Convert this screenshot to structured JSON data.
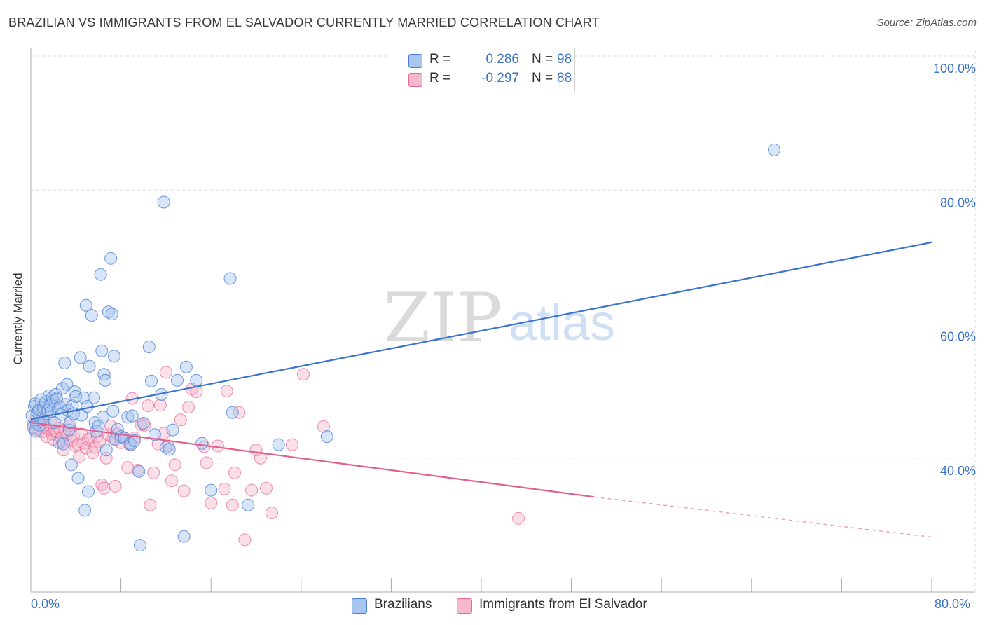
{
  "header": {
    "title": "BRAZILIAN VS IMMIGRANTS FROM EL SALVADOR CURRENTLY MARRIED CORRELATION CHART",
    "source": "Source: ZipAtlas.com"
  },
  "watermark": {
    "zip": "ZIP",
    "atlas": "atlas"
  },
  "legend": {
    "r_label": "R =",
    "n_label": "N =",
    "series": [
      {
        "name": "Brazilians",
        "r": "0.286",
        "n": "98"
      },
      {
        "name": "Immigrants from El Salvador",
        "r": "-0.297",
        "n": "88"
      }
    ]
  },
  "chart_data": {
    "type": "scatter",
    "title": "BRAZILIAN VS IMMIGRANTS FROM EL SALVADOR CURRENTLY MARRIED CORRELATION CHART",
    "xlabel": "",
    "ylabel": "Currently Married",
    "xlim": [
      0,
      80
    ],
    "ylim": [
      20,
      100
    ],
    "x_tick_labels": [
      "0.0%",
      "80.0%"
    ],
    "y_tick_labels": [
      "40.0%",
      "60.0%",
      "80.0%",
      "100.0%"
    ],
    "y_ticks": [
      40,
      60,
      80,
      100
    ],
    "grid": true,
    "colors": {
      "blue": "#4a7fd4",
      "blue_fill": "#a9c6ef",
      "pink": "#e8699a",
      "pink_fill": "#f5b8cd",
      "axis_label": "#3b73c6"
    },
    "series": [
      {
        "name": "Brazilians",
        "r": 0.286,
        "n": 98,
        "trend": {
          "x1": 0,
          "y1": 45.8,
          "x2": 80,
          "y2": 72.2
        },
        "points": [
          [
            0.1,
            46.3
          ],
          [
            0.2,
            44.6
          ],
          [
            0.3,
            47.7
          ],
          [
            0.4,
            48.1
          ],
          [
            0.5,
            45.2
          ],
          [
            0.6,
            46.8
          ],
          [
            0.7,
            47.2
          ],
          [
            0.8,
            44.9
          ],
          [
            0.9,
            48.7
          ],
          [
            1.0,
            46.0
          ],
          [
            1.1,
            47.5
          ],
          [
            1.2,
            45.7
          ],
          [
            1.3,
            48.3
          ],
          [
            1.4,
            46.6
          ],
          [
            1.5,
            47.1
          ],
          [
            1.6,
            49.3
          ],
          [
            1.7,
            47.8
          ],
          [
            1.8,
            46.9
          ],
          [
            1.9,
            49.0
          ],
          [
            2.0,
            48.6
          ],
          [
            2.1,
            45.3
          ],
          [
            2.2,
            49.5
          ],
          [
            2.3,
            48.8
          ],
          [
            2.4,
            47.4
          ],
          [
            2.5,
            42.3
          ],
          [
            2.6,
            47.6
          ],
          [
            2.7,
            46.5
          ],
          [
            2.8,
            50.4
          ],
          [
            2.9,
            42.1
          ],
          [
            3.0,
            54.2
          ],
          [
            3.1,
            48.0
          ],
          [
            3.2,
            51.0
          ],
          [
            3.3,
            47.1
          ],
          [
            3.4,
            44.2
          ],
          [
            3.5,
            45.3
          ],
          [
            3.6,
            39.0
          ],
          [
            3.7,
            47.8
          ],
          [
            3.8,
            46.6
          ],
          [
            3.9,
            49.9
          ],
          [
            4.0,
            49.2
          ],
          [
            4.2,
            37.0
          ],
          [
            4.4,
            55.0
          ],
          [
            4.5,
            46.4
          ],
          [
            4.7,
            49.0
          ],
          [
            4.8,
            32.2
          ],
          [
            4.9,
            62.8
          ],
          [
            5.0,
            47.7
          ],
          [
            5.1,
            35.0
          ],
          [
            5.2,
            53.7
          ],
          [
            5.4,
            61.3
          ],
          [
            5.6,
            49.0
          ],
          [
            5.7,
            45.3
          ],
          [
            5.8,
            44.0
          ],
          [
            6.0,
            44.8
          ],
          [
            6.2,
            67.4
          ],
          [
            6.3,
            56.0
          ],
          [
            6.4,
            46.1
          ],
          [
            6.5,
            52.5
          ],
          [
            6.6,
            51.6
          ],
          [
            6.7,
            41.2
          ],
          [
            6.9,
            61.8
          ],
          [
            7.1,
            69.8
          ],
          [
            7.2,
            61.5
          ],
          [
            7.3,
            47.0
          ],
          [
            7.4,
            55.2
          ],
          [
            7.5,
            42.8
          ],
          [
            7.7,
            44.3
          ],
          [
            8.0,
            43.2
          ],
          [
            8.3,
            43.0
          ],
          [
            8.6,
            46.1
          ],
          [
            8.8,
            42.2
          ],
          [
            8.9,
            42.0
          ],
          [
            9.0,
            46.3
          ],
          [
            9.2,
            42.6
          ],
          [
            9.6,
            38.0
          ],
          [
            9.7,
            27.0
          ],
          [
            10.0,
            45.2
          ],
          [
            10.5,
            56.6
          ],
          [
            10.7,
            51.5
          ],
          [
            11.0,
            43.5
          ],
          [
            11.6,
            49.5
          ],
          [
            11.8,
            78.2
          ],
          [
            12.0,
            41.6
          ],
          [
            12.3,
            41.3
          ],
          [
            12.6,
            44.2
          ],
          [
            13.0,
            51.6
          ],
          [
            13.6,
            28.3
          ],
          [
            13.8,
            53.6
          ],
          [
            14.7,
            51.6
          ],
          [
            15.2,
            42.2
          ],
          [
            16.0,
            35.2
          ],
          [
            17.7,
            66.8
          ],
          [
            17.9,
            46.8
          ],
          [
            19.3,
            33.0
          ],
          [
            22.0,
            42.0
          ],
          [
            26.3,
            43.2
          ],
          [
            66.0,
            86.0
          ],
          [
            0.4,
            44.0
          ]
        ]
      },
      {
        "name": "Immigrants from El Salvador",
        "r": -0.297,
        "n": 88,
        "trend": {
          "x1": 0,
          "y1": 45.3,
          "x2": 50,
          "y2": 34.2,
          "dash_x2": 80,
          "dash_y2": 28.2
        },
        "points": [
          [
            0.2,
            45.0
          ],
          [
            0.4,
            44.3
          ],
          [
            0.5,
            46.1
          ],
          [
            0.7,
            45.6
          ],
          [
            0.8,
            44.1
          ],
          [
            1.0,
            43.9
          ],
          [
            1.1,
            44.8
          ],
          [
            1.2,
            45.4
          ],
          [
            1.3,
            44.6
          ],
          [
            1.4,
            43.2
          ],
          [
            1.6,
            44.3
          ],
          [
            1.8,
            45.2
          ],
          [
            1.9,
            43.6
          ],
          [
            2.0,
            42.8
          ],
          [
            2.1,
            44.1
          ],
          [
            2.3,
            43.9
          ],
          [
            2.5,
            44.5
          ],
          [
            2.7,
            43.0
          ],
          [
            2.8,
            42.3
          ],
          [
            2.9,
            41.2
          ],
          [
            3.0,
            44.2
          ],
          [
            3.2,
            43.5
          ],
          [
            3.4,
            44.8
          ],
          [
            3.6,
            42.6
          ],
          [
            3.8,
            43.2
          ],
          [
            4.0,
            41.8
          ],
          [
            4.2,
            42.0
          ],
          [
            4.3,
            40.2
          ],
          [
            4.5,
            43.6
          ],
          [
            4.7,
            42.2
          ],
          [
            4.9,
            41.5
          ],
          [
            5.1,
            42.8
          ],
          [
            5.3,
            43.0
          ],
          [
            5.5,
            40.8
          ],
          [
            5.7,
            41.6
          ],
          [
            5.9,
            43.2
          ],
          [
            6.1,
            42.4
          ],
          [
            6.3,
            36.0
          ],
          [
            6.5,
            35.5
          ],
          [
            6.7,
            40.0
          ],
          [
            6.9,
            43.5
          ],
          [
            7.1,
            44.8
          ],
          [
            7.3,
            42.9
          ],
          [
            7.5,
            35.8
          ],
          [
            7.7,
            43.6
          ],
          [
            8.0,
            42.3
          ],
          [
            8.3,
            43.0
          ],
          [
            8.6,
            38.6
          ],
          [
            8.8,
            42.0
          ],
          [
            9.0,
            48.9
          ],
          [
            9.2,
            43.0
          ],
          [
            9.5,
            38.2
          ],
          [
            9.8,
            45.0
          ],
          [
            10.1,
            44.9
          ],
          [
            10.4,
            47.8
          ],
          [
            10.6,
            33.0
          ],
          [
            10.9,
            37.8
          ],
          [
            11.3,
            42.1
          ],
          [
            11.5,
            47.9
          ],
          [
            11.8,
            43.7
          ],
          [
            12.0,
            52.8
          ],
          [
            12.2,
            41.8
          ],
          [
            12.5,
            36.6
          ],
          [
            12.8,
            39.0
          ],
          [
            13.3,
            45.7
          ],
          [
            13.6,
            35.1
          ],
          [
            14.0,
            47.6
          ],
          [
            14.3,
            50.3
          ],
          [
            14.7,
            49.9
          ],
          [
            15.4,
            41.7
          ],
          [
            15.6,
            39.3
          ],
          [
            16.0,
            33.3
          ],
          [
            16.6,
            41.8
          ],
          [
            17.2,
            35.4
          ],
          [
            17.4,
            50.0
          ],
          [
            17.9,
            33.0
          ],
          [
            18.1,
            37.8
          ],
          [
            18.5,
            46.8
          ],
          [
            19.0,
            27.8
          ],
          [
            19.6,
            35.2
          ],
          [
            20.0,
            41.2
          ],
          [
            20.4,
            40.0
          ],
          [
            20.9,
            35.5
          ],
          [
            21.4,
            31.8
          ],
          [
            23.2,
            42.0
          ],
          [
            24.2,
            52.5
          ],
          [
            26.0,
            44.7
          ],
          [
            43.3,
            31.0
          ]
        ]
      }
    ]
  }
}
